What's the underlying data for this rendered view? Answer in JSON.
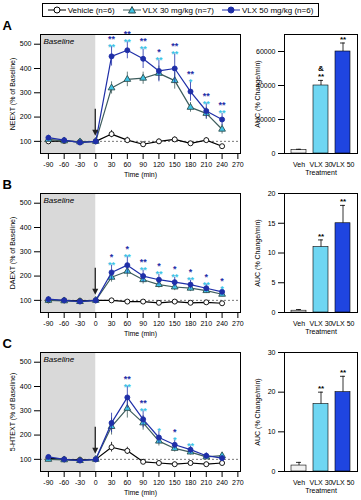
{
  "chart_data": [
    {
      "type": "line",
      "title": "A",
      "xlabel": "Time (min)",
      "ylabel": "NEEXT (% of Baseline)",
      "x": [
        -90,
        -60,
        -30,
        0,
        30,
        60,
        90,
        120,
        150,
        180,
        210,
        240
      ],
      "xlim": [
        -105,
        275
      ],
      "xticks": [
        -90,
        -60,
        -30,
        0,
        30,
        60,
        90,
        120,
        150,
        180,
        210,
        240,
        270
      ],
      "ylim": [
        50,
        540
      ],
      "yticks": [
        100,
        200,
        300,
        400,
        500
      ],
      "grid": false,
      "legend": "top",
      "shaded_region": {
        "x": [
          -105,
          0
        ],
        "label": "Baseline"
      },
      "reference_y": 100,
      "dose_arrow_x": 0,
      "series": [
        {
          "name": "Vehicle (n=6)",
          "color": "#000000",
          "marker": "circle-open",
          "values": [
            100,
            102,
            98,
            100,
            130,
            105,
            88,
            100,
            108,
            92,
            105,
            80
          ],
          "errors": [
            8,
            6,
            5,
            5,
            15,
            12,
            8,
            10,
            10,
            8,
            10,
            6
          ]
        },
        {
          "name": "VLX 30 mg/kg (n=7)",
          "color": "#3ec4e6",
          "marker": "triangle",
          "values": [
            108,
            102,
            98,
            100,
            320,
            355,
            360,
            380,
            350,
            240,
            215,
            150
          ],
          "errors": [
            8,
            6,
            5,
            5,
            25,
            30,
            25,
            30,
            35,
            20,
            25,
            20
          ],
          "significance": [
            null,
            null,
            null,
            null,
            "**",
            "**",
            "**",
            "**",
            "**",
            "*",
            "**",
            "**"
          ]
        },
        {
          "name": "VLX 50 mg/kg (n=6)",
          "color": "#1f2fa8",
          "marker": "circle",
          "values": [
            115,
            105,
            95,
            100,
            450,
            475,
            440,
            390,
            400,
            305,
            225,
            190
          ],
          "errors": [
            10,
            8,
            6,
            5,
            40,
            35,
            40,
            45,
            60,
            40,
            30,
            25
          ],
          "significance": [
            null,
            null,
            null,
            null,
            "**",
            "**",
            "**",
            "*",
            "**",
            "**",
            "**",
            "**"
          ]
        }
      ]
    },
    {
      "type": "bar",
      "xlabel": "Treatment",
      "ylabel": "AUC (% Change/min)",
      "categories": [
        "Veh",
        "VLX 30",
        "VLX 50"
      ],
      "values": [
        2000,
        40000,
        60000
      ],
      "errors": [
        500,
        3000,
        5000
      ],
      "colors": [
        "#f2f2f2",
        "#6fd6f2",
        "#1f45e0"
      ],
      "ylim": [
        0,
        70000
      ],
      "yticks": [
        0,
        20000,
        40000,
        60000
      ],
      "grid": false,
      "annotations": [
        {
          "category": "VLX 30",
          "text": "&\n**"
        },
        {
          "category": "VLX 50",
          "text": "**"
        }
      ]
    },
    {
      "type": "line",
      "title": "B",
      "xlabel": "Time (min)",
      "ylabel": "DAEXT (% of Baseline)",
      "x": [
        -90,
        -60,
        -30,
        0,
        30,
        60,
        90,
        120,
        150,
        180,
        210,
        240
      ],
      "xlim": [
        -105,
        275
      ],
      "xticks": [
        -90,
        -60,
        -30,
        0,
        30,
        60,
        90,
        120,
        150,
        180,
        210,
        240,
        270
      ],
      "ylim": [
        50,
        540
      ],
      "yticks": [
        100,
        200,
        300,
        400,
        500
      ],
      "grid": false,
      "shaded_region": {
        "x": [
          -105,
          0
        ],
        "label": "Baseline"
      },
      "reference_y": 100,
      "dose_arrow_x": 0,
      "series": [
        {
          "name": "Vehicle (n=6)",
          "color": "#000000",
          "marker": "circle-open",
          "values": [
            100,
            100,
            98,
            100,
            100,
            95,
            95,
            90,
            95,
            90,
            92,
            88
          ],
          "errors": [
            5,
            4,
            4,
            3,
            8,
            6,
            6,
            5,
            6,
            5,
            5,
            5
          ]
        },
        {
          "name": "VLX 30 mg/kg (n=7)",
          "color": "#3ec4e6",
          "marker": "triangle",
          "values": [
            100,
            98,
            95,
            100,
            195,
            220,
            185,
            165,
            155,
            150,
            140,
            125
          ],
          "errors": [
            6,
            5,
            4,
            3,
            20,
            25,
            18,
            15,
            15,
            14,
            12,
            10
          ],
          "significance": [
            null,
            null,
            null,
            null,
            "**",
            "**",
            "**",
            "**",
            "**",
            "**",
            "**",
            "*"
          ]
        },
        {
          "name": "VLX 50 mg/kg (n=6)",
          "color": "#1f2fa8",
          "marker": "circle",
          "values": [
            105,
            100,
            95,
            100,
            215,
            245,
            200,
            185,
            175,
            165,
            150,
            135
          ],
          "errors": [
            8,
            6,
            5,
            4,
            30,
            35,
            25,
            22,
            20,
            18,
            15,
            12
          ],
          "significance": [
            null,
            null,
            null,
            null,
            "*",
            "*",
            "**",
            "*",
            "*",
            "*",
            "*",
            "*"
          ]
        }
      ]
    },
    {
      "type": "bar",
      "xlabel": "Treatment",
      "ylabel": "AUC (% Change/min)",
      "categories": [
        "Veh",
        "VLX 30",
        "VLX 50"
      ],
      "values": [
        0.3,
        11,
        15
      ],
      "errors": [
        0.2,
        1.2,
        3
      ],
      "colors": [
        "#f2f2f2",
        "#6fd6f2",
        "#1f45e0"
      ],
      "ylim": [
        0,
        20
      ],
      "yticks": [
        0,
        5,
        10,
        15,
        20
      ],
      "grid": false,
      "annotations": [
        {
          "category": "VLX 30",
          "text": "**"
        },
        {
          "category": "VLX 50",
          "text": "**"
        }
      ]
    },
    {
      "type": "line",
      "title": "C",
      "xlabel": "Time (min)",
      "ylabel": "5-HTEXT (% of Baseline)",
      "x": [
        -90,
        -60,
        -30,
        0,
        30,
        60,
        90,
        120,
        150,
        180,
        210,
        240
      ],
      "xlim": [
        -105,
        275
      ],
      "xticks": [
        -90,
        -60,
        -30,
        0,
        30,
        60,
        90,
        120,
        150,
        180,
        210,
        240,
        270
      ],
      "ylim": [
        50,
        540
      ],
      "yticks": [
        100,
        200,
        300,
        400,
        500
      ],
      "grid": false,
      "shaded_region": {
        "x": [
          -105,
          0
        ],
        "label": "Baseline"
      },
      "reference_y": 100,
      "dose_arrow_x": 0,
      "series": [
        {
          "name": "Vehicle (n=6)",
          "color": "#000000",
          "marker": "circle-open",
          "values": [
            105,
            100,
            98,
            100,
            150,
            135,
            90,
            85,
            80,
            85,
            80,
            85
          ],
          "errors": [
            8,
            6,
            5,
            4,
            20,
            15,
            10,
            8,
            8,
            8,
            8,
            8
          ]
        },
        {
          "name": "VLX 30 mg/kg (n=7)",
          "color": "#3ec4e6",
          "marker": "triangle",
          "values": [
            100,
            98,
            95,
            100,
            235,
            310,
            250,
            175,
            145,
            130,
            110,
            115
          ],
          "errors": [
            6,
            5,
            5,
            4,
            35,
            40,
            30,
            20,
            15,
            12,
            10,
            10
          ],
          "significance": [
            null,
            null,
            null,
            null,
            null,
            "**",
            "**",
            "*",
            "*",
            "**",
            null,
            null
          ]
        },
        {
          "name": "VLX 50 mg/kg (n=6)",
          "color": "#1f2fa8",
          "marker": "circle",
          "values": [
            110,
            100,
            95,
            100,
            250,
            355,
            265,
            190,
            160,
            140,
            115,
            105
          ],
          "errors": [
            8,
            6,
            5,
            4,
            40,
            45,
            35,
            25,
            18,
            15,
            12,
            10
          ],
          "significance": [
            null,
            null,
            null,
            null,
            null,
            "**",
            "**",
            null,
            "*",
            null,
            null,
            null
          ]
        }
      ]
    },
    {
      "type": "bar",
      "xlabel": "Treatment",
      "ylabel": "AUC (% Change/min)",
      "categories": [
        "Veh",
        "VLX 30",
        "VLX 50"
      ],
      "values": [
        1.5,
        17,
        20
      ],
      "errors": [
        0.8,
        3,
        4
      ],
      "colors": [
        "#f2f2f2",
        "#6fd6f2",
        "#1f45e0"
      ],
      "ylim": [
        0,
        30
      ],
      "yticks": [
        0,
        10,
        20,
        30
      ],
      "grid": false,
      "annotations": [
        {
          "category": "VLX 30",
          "text": "**"
        },
        {
          "category": "VLX 50",
          "text": "**"
        }
      ]
    }
  ]
}
